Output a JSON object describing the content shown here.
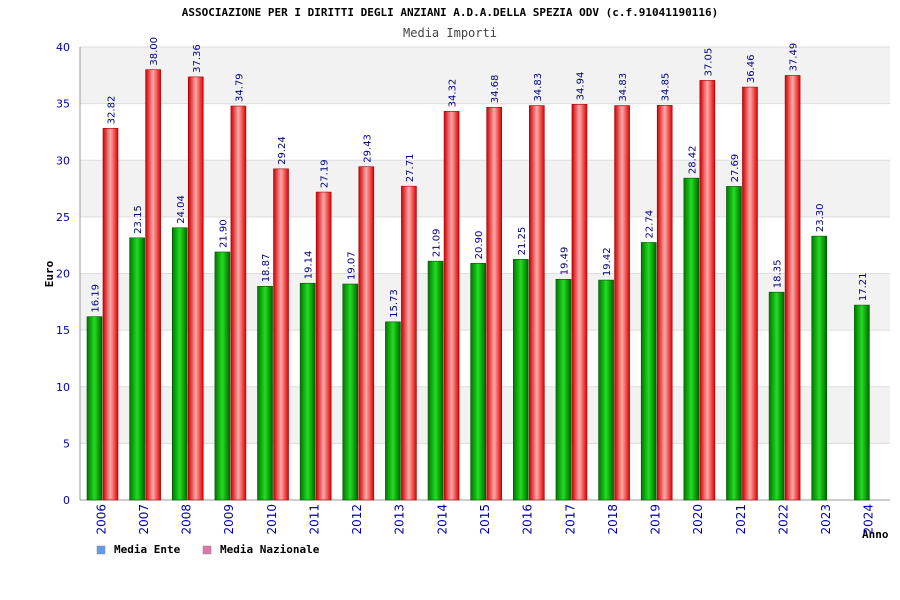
{
  "chart_data": {
    "type": "bar",
    "title": "ASSOCIAZIONE PER I DIRITTI DEGLI ANZIANI A.D.A.DELLA SPEZIA ODV (c.f.91041190116)",
    "subtitle": "Media Importi",
    "xlabel": "Anno",
    "ylabel": "Euro",
    "ylim": [
      0,
      40
    ],
    "yticks": [
      0,
      5,
      10,
      15,
      20,
      25,
      30,
      35,
      40
    ],
    "grid": true,
    "legend_position": "bottom-left",
    "categories": [
      "2006",
      "2007",
      "2008",
      "2009",
      "2010",
      "2011",
      "2012",
      "2013",
      "2014",
      "2015",
      "2016",
      "2017",
      "2018",
      "2019",
      "2020",
      "2021",
      "2022",
      "2023",
      "2024"
    ],
    "series": [
      {
        "name": "Media Ente",
        "color": "#00aa00",
        "legend_color": "#6699ee",
        "values": [
          16.19,
          23.15,
          24.04,
          21.9,
          18.87,
          19.14,
          19.07,
          15.73,
          21.09,
          20.9,
          21.25,
          19.49,
          19.42,
          22.74,
          28.42,
          27.69,
          18.35,
          23.3,
          17.21
        ],
        "labels": [
          "16.19",
          "23.15",
          "24.04",
          "21.90",
          "18.87",
          "19.14",
          "19.07",
          "15.73",
          "21.09",
          "20.90",
          "21.25",
          "19.49",
          "19.42",
          "22.74",
          "28.42",
          "27.69",
          "18.35",
          "23.30",
          "17.21"
        ]
      },
      {
        "name": "Media Nazionale",
        "color": "#ee1111",
        "legend_color": "#dd77aa",
        "values": [
          32.82,
          38.0,
          37.36,
          34.79,
          29.24,
          27.19,
          29.43,
          27.71,
          34.32,
          34.68,
          34.83,
          34.94,
          34.83,
          34.85,
          37.05,
          36.46,
          37.49,
          null,
          null
        ],
        "labels": [
          "32.82",
          "38.00",
          "37.36",
          "34.79",
          "29.24",
          "27.19",
          "29.43",
          "27.71",
          "34.32",
          "34.68",
          "34.83",
          "34.94",
          "34.83",
          "34.85",
          "37.05",
          "36.46",
          "37.49",
          null,
          null
        ]
      }
    ]
  }
}
